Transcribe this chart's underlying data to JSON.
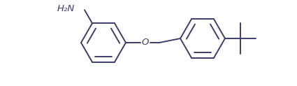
{
  "line_color": "#3d3d6b",
  "line_width": 1.4,
  "bg_color": "#ffffff",
  "figsize": [
    4.25,
    1.23
  ],
  "dpi": 100,
  "h2n_label": "H₂N",
  "o_label": "O",
  "font_size": 9.5
}
